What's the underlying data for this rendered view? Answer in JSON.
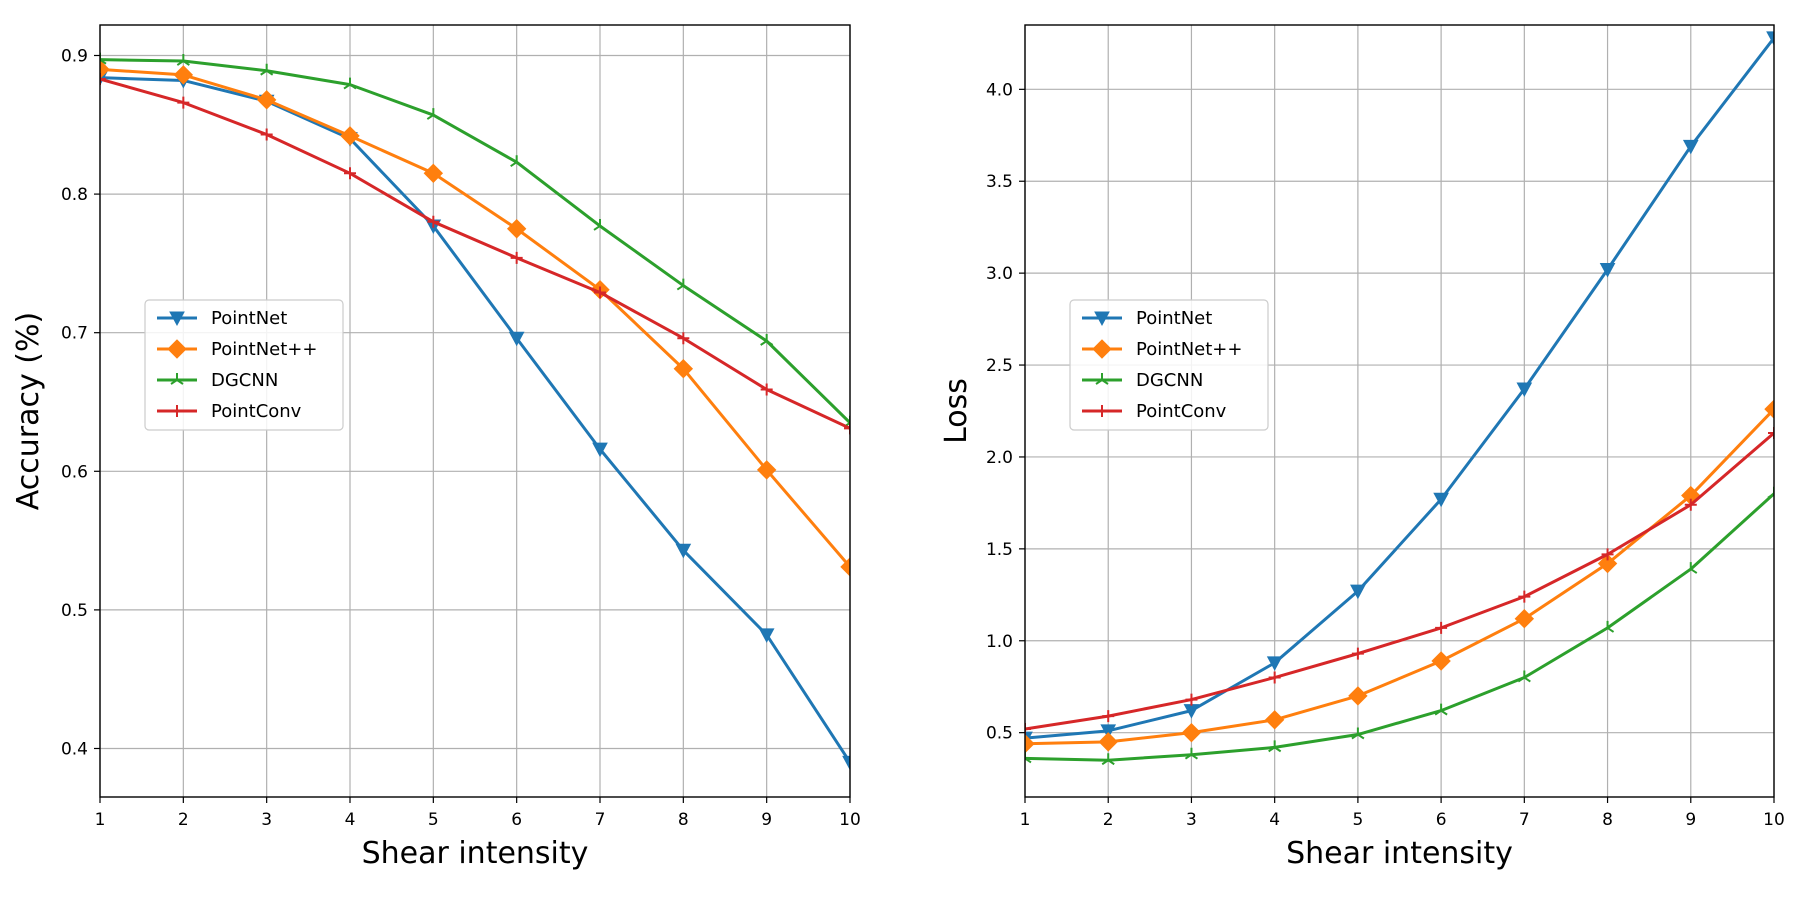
{
  "chart_data": [
    {
      "type": "line",
      "xlabel": "Shear intensity",
      "ylabel": "Accuracy (%)",
      "x": [
        1,
        2,
        3,
        4,
        5,
        6,
        7,
        8,
        9,
        10
      ],
      "xlim": [
        1,
        10
      ],
      "ylim": [
        0.365,
        0.922
      ],
      "xticks": [
        1,
        2,
        3,
        4,
        5,
        6,
        7,
        8,
        9,
        10
      ],
      "yticks": [
        0.4,
        0.5,
        0.6,
        0.7,
        0.8,
        0.9
      ],
      "ytick_labels": [
        "0.4",
        "0.5",
        "0.6",
        "0.7",
        "0.8",
        "0.9"
      ],
      "grid": true,
      "legend_position": "center-left",
      "series": [
        {
          "name": "PointNet",
          "color": "#1f77b4",
          "marker": "triangle-down",
          "values": [
            0.884,
            0.882,
            0.867,
            0.84,
            0.777,
            0.696,
            0.616,
            0.543,
            0.482,
            0.39
          ]
        },
        {
          "name": "PointNet++",
          "color": "#ff7f0e",
          "marker": "diamond",
          "values": [
            0.89,
            0.886,
            0.868,
            0.842,
            0.815,
            0.775,
            0.731,
            0.674,
            0.601,
            0.531
          ]
        },
        {
          "name": "DGCNN",
          "color": "#2ca02c",
          "marker": "tri-star",
          "values": [
            0.897,
            0.896,
            0.889,
            0.879,
            0.857,
            0.823,
            0.777,
            0.734,
            0.694,
            0.635
          ]
        },
        {
          "name": "PointConv",
          "color": "#d62728",
          "marker": "plus",
          "values": [
            0.883,
            0.866,
            0.843,
            0.815,
            0.78,
            0.754,
            0.729,
            0.696,
            0.659,
            0.631
          ]
        }
      ]
    },
    {
      "type": "line",
      "xlabel": "Shear intensity",
      "ylabel": "Loss",
      "x": [
        1,
        2,
        3,
        4,
        5,
        6,
        7,
        8,
        9,
        10
      ],
      "xlim": [
        1,
        10
      ],
      "ylim": [
        0.15,
        4.35
      ],
      "xticks": [
        1,
        2,
        3,
        4,
        5,
        6,
        7,
        8,
        9,
        10
      ],
      "yticks": [
        0.5,
        1.0,
        1.5,
        2.0,
        2.5,
        3.0,
        3.5,
        4.0
      ],
      "ytick_labels": [
        "0.5",
        "1.0",
        "1.5",
        "2.0",
        "2.5",
        "3.0",
        "3.5",
        "4.0"
      ],
      "grid": true,
      "legend_position": "center-left",
      "series": [
        {
          "name": "PointNet",
          "color": "#1f77b4",
          "marker": "triangle-down",
          "values": [
            0.47,
            0.51,
            0.62,
            0.88,
            1.27,
            1.77,
            2.37,
            3.02,
            3.69,
            4.28
          ]
        },
        {
          "name": "PointNet++",
          "color": "#ff7f0e",
          "marker": "diamond",
          "values": [
            0.44,
            0.45,
            0.5,
            0.57,
            0.7,
            0.89,
            1.12,
            1.42,
            1.79,
            2.26
          ]
        },
        {
          "name": "DGCNN",
          "color": "#2ca02c",
          "marker": "tri-star",
          "values": [
            0.36,
            0.35,
            0.38,
            0.42,
            0.49,
            0.62,
            0.8,
            1.07,
            1.39,
            1.8
          ]
        },
        {
          "name": "PointConv",
          "color": "#d62728",
          "marker": "plus",
          "values": [
            0.52,
            0.59,
            0.68,
            0.8,
            0.93,
            1.07,
            1.24,
            1.47,
            1.74,
            2.13
          ]
        }
      ]
    }
  ]
}
